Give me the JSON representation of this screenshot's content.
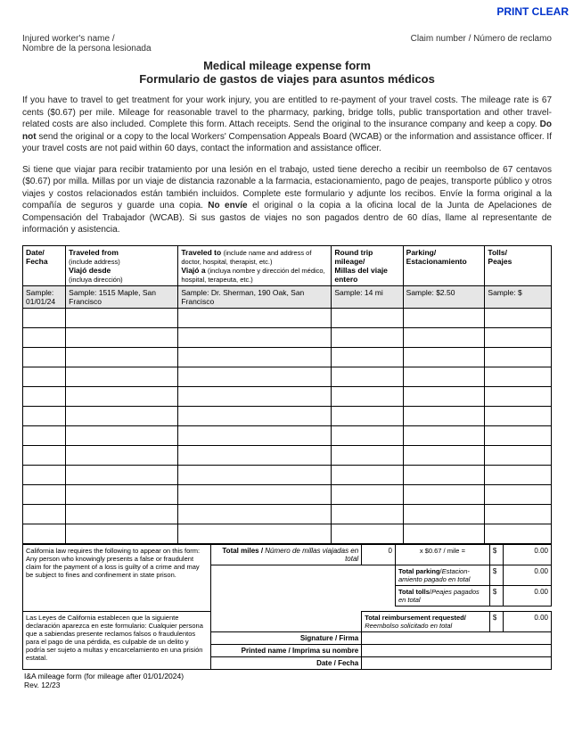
{
  "actions": {
    "print": "PRINT",
    "clear": "CLEAR"
  },
  "header": {
    "worker_label_en": "Injured worker's name /",
    "worker_label_es": "Nombre de la persona lesionada",
    "claim_label": "Claim number / Número de reclamo"
  },
  "title": "Medical mileage expense form",
  "subtitle": "Formulario de gastos de viajes para asuntos médicos",
  "instr_en": "If you have to travel to get treatment for your work injury, you are entitled to re-payment of your travel costs. The mileage rate is 67 cents ($0.67) per mile. Mileage for reasonable travel to the pharmacy, parking, bridge tolls, public transportation and other travel-related costs are also included. Complete this form. Attach receipts. Send the original to the insurance company and keep a copy. <b>Do not</b> send the original or a copy to the local Workers' Compensation Appeals Board (WCAB) or the information and assistance officer. If your travel costs are not paid within 60 days, contact the information and assistance officer.",
  "instr_es": "Si tiene que viajar para recibir tratamiento por una lesión en el trabajo, usted tiene derecho a recibir un reembolso de 67 centavos ($0.67) por milla. Millas por un viaje de distancia razonable a la farmacia, estacionamiento, pago de peajes, transporte público y otros viajes y costos relacionados están también incluidos. Complete este formulario y adjunte los recibos. Envíe la forma original a la compañía de seguros y guarde una copia. <b>No envíe</b> el original o la copia a la oficina local de la Junta de Apelaciones de Compensación del Trabajador (WCAB). Si sus gastos de viajes no son pagados dentro de 60 días, llame al representante de información y asistencia.",
  "table": {
    "headers": {
      "date": "Date/<br>Fecha",
      "from": "<b>Traveled from</b><br><span class='sub'>(include address)</span><br><b>Viajó desde</b><br><span class='sub'>(incluya dirección)</span>",
      "to": "<b>Traveled to</b> <span class='sub'>(include name and address of doctor, hospital, therapist, etc.)</span><br><b>Viajó a</b> <span class='sub'>(incluya nombre y dirección del médico, hospital, terapeuta, etc.)</span>",
      "miles": "<b>Round trip mileage/<br>Millas del viaje entero</b>",
      "parking": "<b>Parking/<br>Estacionamiento</b>",
      "tolls": "<b>Tolls/<br>Peajes</b>"
    },
    "sample": {
      "date": "Sample: 01/01/24",
      "from": "Sample: 1515 Maple, San Francisco",
      "to": "Sample: Dr. Sherman, 190 Oak, San Francisco",
      "miles": "Sample: 14 mi",
      "parking": "Sample: $2.50",
      "tolls": "Sample: $"
    },
    "blank_rows": 12
  },
  "legal_en": "California law requires the following to appear on this form: Any person who knowingly presents a false or fraudulent claim for the payment of a loss is guilty of a crime and may be subject to fines and confinement in state prison.",
  "legal_es": "Las Leyes de California establecen que la siguiente declaración aparezca en este formulario: Cualquier persona que a sabiendas presente reclamos falsos o fraudulentos para el pago de una pérdida, es culpable de un delito y podría ser sujeto a multas y encarcelamiento en una prisión estatal.",
  "totals": {
    "miles_label": "<b>Total miles</b> / <span class='ital'>Número de millas viajadas en total</span>",
    "miles_value": "0",
    "rate_label": "x  $0.67 / mile  =",
    "rate_amount": "0.00",
    "parking_label": "<b>Total parking</b>/<span class='ital'>Estacion-amiento pagado en total</span>",
    "parking_amount": "0.00",
    "tolls_label": "<b>Total tolls</b>/<span class='ital'>Peajes pagados en total</span>",
    "tolls_amount": "0.00",
    "reimb_label": "<b>Total reimbursement requested/</b> <span class='ital'>Reembolso solicitado en total</span>",
    "reimb_amount": "0.00",
    "dollar": "$"
  },
  "sig": {
    "signature": "Signature / Firma",
    "printed": "Printed name / Imprima su nombre",
    "date": "Date / Fecha"
  },
  "footer": {
    "line1": "I&A mileage form (for mileage after 01/01/2024)",
    "line2": "Rev. 12/23"
  }
}
